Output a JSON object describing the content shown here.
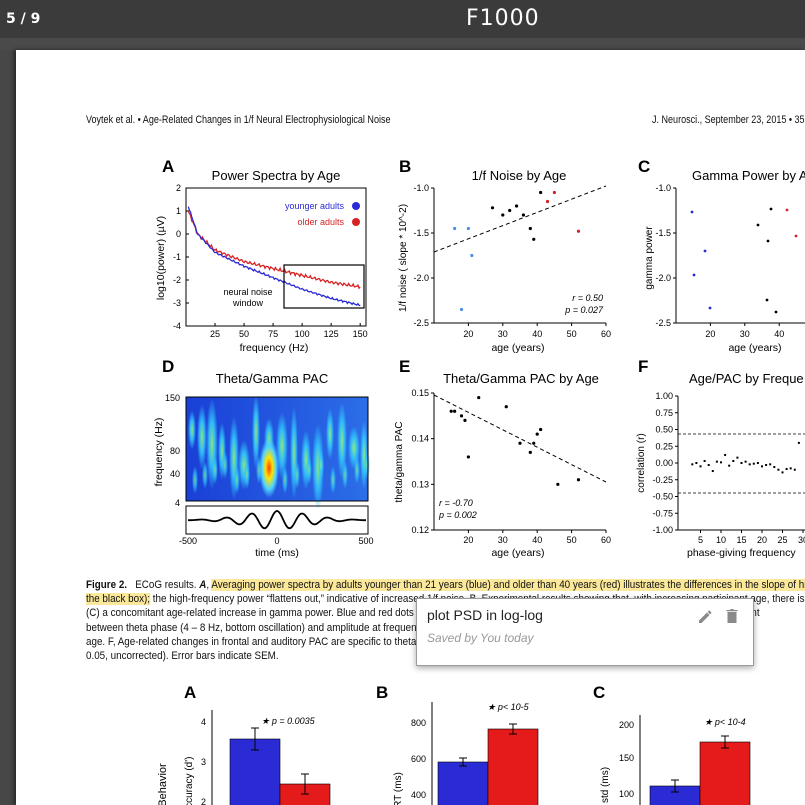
{
  "viewer": {
    "page_indicator": "5 / 9",
    "logo": "F1000"
  },
  "header": {
    "left": "Voytek et al. • Age-Related Changes in 1/f Neural Electrophysiological Noise",
    "right": "J. Neurosci., September 23, 2015 • 35"
  },
  "figure": {
    "A": {
      "letter": "A",
      "title": "Power Spectra by Age",
      "legend_young": "younger adults",
      "legend_old": "older adults",
      "box_label_1": "neural noise",
      "box_label_2": "window",
      "xlabel": "frequency (Hz)",
      "ylabel": "log10(power) (µV)",
      "xticks": [
        "25",
        "50",
        "75",
        "100",
        "125",
        "150"
      ],
      "yticks": [
        "2",
        "1",
        "0",
        "-1",
        "-2",
        "-3",
        "-4"
      ]
    },
    "B": {
      "letter": "B",
      "title": "1/f Noise by Age",
      "xlabel": "age (years)",
      "ylabel": "1/f noise ( slope * 10^-2)",
      "r": "r = 0.50",
      "p": "p = 0.027",
      "xticks": [
        "20",
        "30",
        "40",
        "50",
        "60"
      ],
      "yticks": [
        "-1.0",
        "-1.5",
        "-2.0",
        "-2.5"
      ]
    },
    "C": {
      "letter": "C",
      "title": "Gamma Power by A",
      "xlabel": "age (years)",
      "ylabel": "gamma power",
      "xticks": [
        "20",
        "30",
        "40"
      ],
      "yticks": [
        "-1.0",
        "-1.5",
        "-2.0",
        "-2.5"
      ]
    },
    "D": {
      "letter": "D",
      "title": "Theta/Gamma PAC",
      "xlabel": "time (ms)",
      "ylabel": "frequency (Hz)",
      "yticks": [
        "150",
        "80",
        "40",
        "4"
      ],
      "xticks": [
        "-500",
        "0",
        "500"
      ]
    },
    "E": {
      "letter": "E",
      "title": "Theta/Gamma PAC by Age",
      "xlabel": "age (years)",
      "ylabel": "theta/gamma PAC",
      "r": "r = -0.70",
      "p": "p = 0.002",
      "xticks": [
        "20",
        "30",
        "40",
        "50",
        "60"
      ],
      "yticks": [
        "0.15",
        "0.14",
        "0.13",
        "0.12"
      ]
    },
    "F": {
      "letter": "F",
      "title": "Age/PAC by Freque",
      "xlabel": "phase-giving frequency",
      "ylabel": "correlation (r)",
      "yticks": [
        "1.00",
        "0.75",
        "0.50",
        "0.25",
        "0.00",
        "-0.25",
        "-0.50",
        "-0.75",
        "-1.00"
      ],
      "xticks": [
        "5",
        "10",
        "15",
        "20",
        "25",
        "30"
      ]
    }
  },
  "caption": {
    "label": "Figure 2.",
    "line1_pre": "ECoG results. ",
    "line1_A": "A",
    "line1_hl": "Averaging power spectra by adults younger than 21 years (blue) and older than 40 years (red) illustrates the differences in the slope of high",
    "line2_hl": "the black box);",
    "line2_rest": " the high-frequency power “flattens out,” indicative of increased 1/f noise. B, Experimental results showing that, with increasing participant age, there is",
    "line3": "(C) a concomitant age-related increase in gamma power. Blue and red dots indicate participants shown in A. D, Example comodulogram for one participant",
    "line4": "between theta phase (4 – 8 Hz, bottom oscillation) and amplitude at frequencies in the gamma range (80 – 150 Hz). E, Theta/gamma PAC decrease",
    "line5": "age. F, Age-related changes in frontal and auditory PAC are specific to theta/low-gamma coupling; other frequencies are shown in F indica",
    "line6": "0.05, uncorrected). Error bars indicate SEM."
  },
  "note": {
    "text": "plot PSD in log-log",
    "saved": "Saved by You today",
    "edit_icon": "pencil-icon",
    "delete_icon": "trash-icon"
  },
  "figure3": {
    "A": {
      "letter": "A",
      "sig": "★ p = 0.0035",
      "ylabel": "Behavior",
      "ylabel2": "accuracy (d')",
      "yticks": [
        "4",
        "3",
        "2"
      ]
    },
    "B": {
      "letter": "B",
      "sig": "★ p< 10-5",
      "ylabel": "RT (ms)",
      "yticks": [
        "800",
        "600",
        "400"
      ]
    },
    "C": {
      "letter": "C",
      "sig": "★ p< 10-4",
      "ylabel": "std (ms)",
      "yticks": [
        "200",
        "150",
        "100"
      ]
    }
  },
  "chart_data": [
    {
      "type": "line",
      "title": "Power Spectra by Age",
      "xlabel": "frequency (Hz)",
      "ylabel": "log10(power) (µV)",
      "xlim": [
        0,
        155
      ],
      "ylim": [
        -4,
        2
      ],
      "series": [
        {
          "name": "younger adults",
          "color": "#2b2bd6",
          "x": [
            2,
            10,
            25,
            50,
            75,
            100,
            125,
            150
          ],
          "y": [
            1.2,
            0.0,
            -0.8,
            -1.4,
            -1.9,
            -2.4,
            -2.8,
            -3.1
          ]
        },
        {
          "name": "older adults",
          "color": "#d62222",
          "x": [
            2,
            10,
            25,
            50,
            75,
            100,
            125,
            150
          ],
          "y": [
            1.0,
            0.0,
            -0.7,
            -1.2,
            -1.5,
            -1.8,
            -2.1,
            -2.3
          ]
        }
      ]
    },
    {
      "type": "scatter",
      "title": "1/f Noise by Age",
      "xlabel": "age (years)",
      "ylabel": "1/f noise (slope * 10^-2)",
      "xlim": [
        10,
        60
      ],
      "ylim": [
        -2.5,
        -1.0
      ],
      "x": [
        16,
        18,
        20,
        21,
        27,
        30,
        32,
        34,
        36,
        38,
        39,
        41,
        43,
        45,
        52
      ],
      "y": [
        -1.45,
        -2.35,
        -1.45,
        -1.75,
        -1.22,
        -1.3,
        -1.25,
        -1.2,
        -1.3,
        -1.45,
        -1.57,
        -1.05,
        -1.15,
        -1.05,
        -1.48
      ]
    },
    {
      "type": "scatter",
      "title": "Theta/Gamma PAC by Age",
      "xlabel": "age (years)",
      "ylabel": "theta/gamma PAC",
      "xlim": [
        10,
        60
      ],
      "ylim": [
        0.12,
        0.15
      ],
      "x": [
        15,
        16,
        18,
        19,
        20,
        23,
        31,
        35,
        38,
        39,
        40,
        41,
        46,
        52
      ],
      "y": [
        0.146,
        0.146,
        0.145,
        0.144,
        0.136,
        0.149,
        0.147,
        0.139,
        0.137,
        0.139,
        0.141,
        0.142,
        0.13,
        0.131
      ]
    },
    {
      "type": "bar",
      "title": "Behavior accuracy (d')",
      "categories": [
        "younger",
        "older"
      ],
      "values": [
        3.5,
        2.2
      ],
      "ylim": [
        1.5,
        4
      ]
    },
    {
      "type": "bar",
      "title": "RT (ms)",
      "categories": [
        "younger",
        "older"
      ],
      "values": [
        570,
        770
      ],
      "ylim": [
        300,
        800
      ]
    },
    {
      "type": "bar",
      "title": "std (ms)",
      "categories": [
        "younger",
        "older"
      ],
      "values": [
        110,
        172
      ],
      "ylim": [
        80,
        200
      ]
    }
  ]
}
